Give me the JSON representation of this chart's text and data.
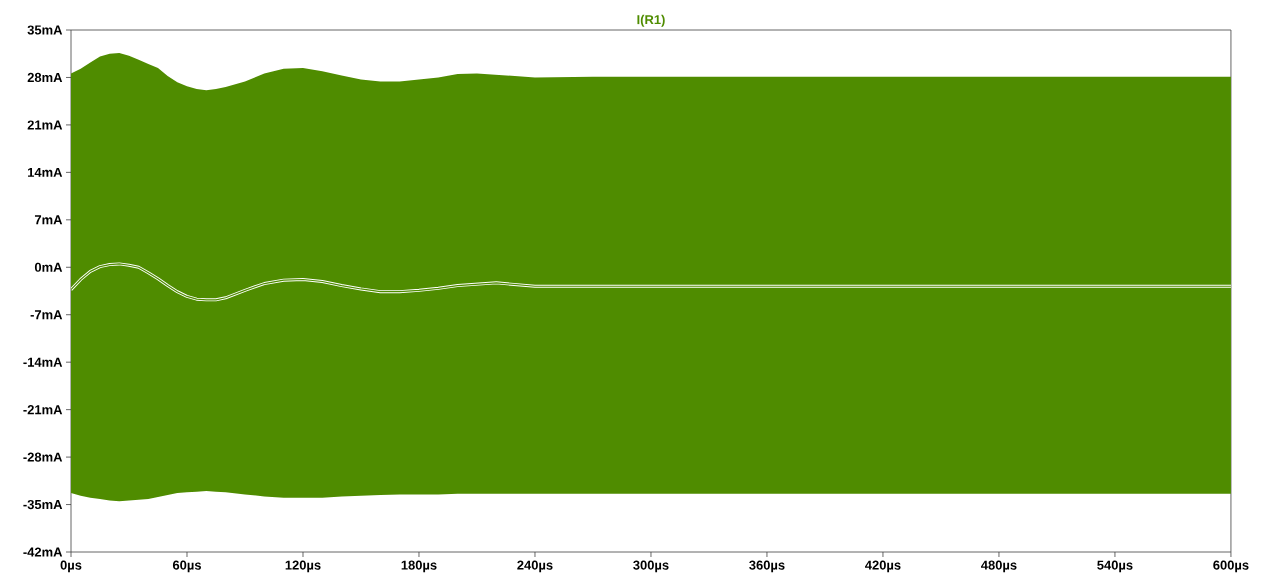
{
  "chart_data": {
    "type": "line",
    "x": [
      0,
      5,
      10,
      15,
      20,
      25,
      30,
      35,
      40,
      45,
      50,
      55,
      60,
      65,
      70,
      75,
      80,
      90,
      100,
      110,
      120,
      130,
      140,
      150,
      160,
      170,
      180,
      190,
      200,
      210,
      220,
      240,
      270,
      300,
      360,
      420,
      480,
      540,
      600
    ],
    "series": [
      {
        "name": "I(R1)",
        "color": "#4f8c00",
        "values": [
          -3.3,
          -1.8,
          -0.6,
          0.1,
          0.4,
          0.5,
          0.3,
          0.0,
          -0.8,
          -1.7,
          -2.7,
          -3.6,
          -4.3,
          -4.7,
          -4.8,
          -4.8,
          -4.5,
          -3.4,
          -2.4,
          -1.9,
          -1.8,
          -2.1,
          -2.7,
          -3.2,
          -3.6,
          -3.6,
          -3.4,
          -3.1,
          -2.7,
          -2.5,
          -2.3,
          -2.8,
          -2.8,
          -2.8,
          -2.8,
          -2.8,
          -2.8,
          -2.8,
          -2.8
        ],
        "upper": [
          28.6,
          29.3,
          30.2,
          31.1,
          31.5,
          31.6,
          31.2,
          30.6,
          30.0,
          29.4,
          28.2,
          27.3,
          26.7,
          26.3,
          26.1,
          26.3,
          26.6,
          27.4,
          28.6,
          29.3,
          29.4,
          28.9,
          28.3,
          27.7,
          27.4,
          27.4,
          27.7,
          28.0,
          28.5,
          28.6,
          28.4,
          28.0,
          28.1,
          28.1,
          28.1,
          28.1,
          28.1,
          28.1,
          28.1
        ],
        "lower": [
          -33.3,
          -33.7,
          -34.0,
          -34.2,
          -34.4,
          -34.5,
          -34.4,
          -34.3,
          -34.2,
          -33.9,
          -33.6,
          -33.3,
          -33.2,
          -33.1,
          -33.0,
          -33.1,
          -33.2,
          -33.5,
          -33.8,
          -34.0,
          -34.0,
          -34.0,
          -33.8,
          -33.7,
          -33.6,
          -33.5,
          -33.5,
          -33.5,
          -33.4,
          -33.4,
          -33.4,
          -33.4,
          -33.4,
          -33.4,
          -33.4,
          -33.4,
          -33.4,
          -33.4,
          -33.4
        ]
      }
    ],
    "xlim": [
      0,
      600
    ],
    "xticks": [
      {
        "value": 0,
        "label": "0µs"
      },
      {
        "value": 60,
        "label": "60µs"
      },
      {
        "value": 120,
        "label": "120µs"
      },
      {
        "value": 180,
        "label": "180µs"
      },
      {
        "value": 240,
        "label": "240µs"
      },
      {
        "value": 300,
        "label": "300µs"
      },
      {
        "value": 360,
        "label": "360µs"
      },
      {
        "value": 420,
        "label": "420µs"
      },
      {
        "value": 480,
        "label": "480µs"
      },
      {
        "value": 540,
        "label": "540µs"
      },
      {
        "value": 600,
        "label": "600µs"
      }
    ],
    "ylim": [
      -42,
      35
    ],
    "yticks": [
      {
        "value": -42,
        "label": "-42mA"
      },
      {
        "value": -35,
        "label": "-35mA"
      },
      {
        "value": -28,
        "label": "-28mA"
      },
      {
        "value": -21,
        "label": "-21mA"
      },
      {
        "value": -14,
        "label": "-14mA"
      },
      {
        "value": -7,
        "label": "-7mA"
      },
      {
        "value": 0,
        "label": "0mA"
      },
      {
        "value": 7,
        "label": "7mA"
      },
      {
        "value": 14,
        "label": "14mA"
      },
      {
        "value": 21,
        "label": "21mA"
      },
      {
        "value": 28,
        "label": "28mA"
      },
      {
        "value": 35,
        "label": "35mA"
      }
    ]
  }
}
